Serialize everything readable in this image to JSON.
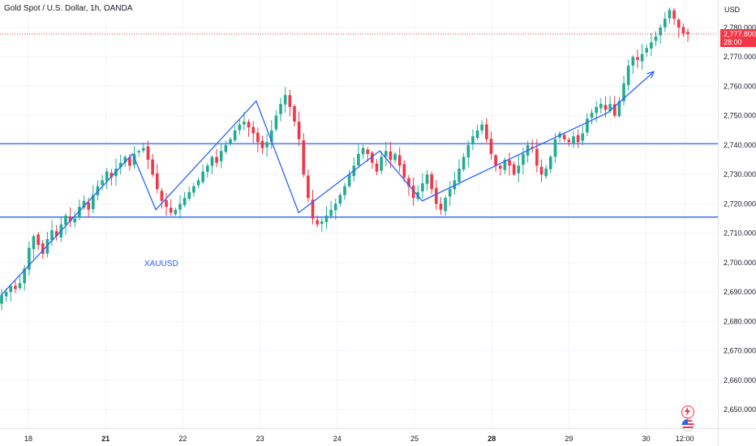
{
  "header": {
    "title": "Gold Spot / U.S. Dollar, 1h, OANDA",
    "currency": "USD"
  },
  "price_tag": {
    "price": "2,777.800",
    "countdown": "28:00"
  },
  "symbol_label": "XAUUSD",
  "colors": {
    "up": "#22ab94",
    "down": "#f23645",
    "drawing": "#2962ff",
    "grid": "#f0f3fa"
  },
  "icons": [
    "lightning-icon",
    "us-flag-icon"
  ],
  "chart_data": {
    "type": "candlestick",
    "symbol": "XAUUSD",
    "timeframe": "1h",
    "ylim": [
      2645,
      2790
    ],
    "yticks": [
      2650,
      2660,
      2670,
      2680,
      2690,
      2700,
      2710,
      2720,
      2730,
      2740,
      2750,
      2760,
      2770,
      2780
    ],
    "ytick_labels": [
      "2,650.000",
      "2,660.000",
      "2,670.000",
      "2,680.000",
      "2,690.000",
      "2,700.000",
      "2,710.000",
      "2,720.000",
      "2,730.000",
      "2,740.000",
      "2,750.000",
      "2,760.000",
      "2,770.000",
      "2,780.000"
    ],
    "x_ticks": [
      {
        "label": "18",
        "session": 0
      },
      {
        "label": "21",
        "session": 1
      },
      {
        "label": "22",
        "session": 2
      },
      {
        "label": "23",
        "session": 3
      },
      {
        "label": "24",
        "session": 4
      },
      {
        "label": "25",
        "session": 5
      },
      {
        "label": "28",
        "session": 6
      },
      {
        "label": "29",
        "session": 7
      },
      {
        "label": "30",
        "session": 8
      },
      {
        "label": "12:00",
        "session": 8.5
      }
    ],
    "last_price": 2777.8,
    "horizontal_levels": [
      2740.5,
      2715.5
    ],
    "path_drawing": [
      {
        "session": -0.35,
        "price": 2689
      },
      {
        "session": 1.35,
        "price": 2737
      },
      {
        "session": 1.65,
        "price": 2718
      },
      {
        "session": 2.95,
        "price": 2755
      },
      {
        "session": 3.5,
        "price": 2717
      },
      {
        "session": 4.55,
        "price": 2738
      },
      {
        "session": 5.1,
        "price": 2721
      },
      {
        "session": 6.45,
        "price": 2738
      },
      {
        "session": 7.5,
        "price": 2751
      },
      {
        "session": 8.1,
        "price": 2765
      }
    ],
    "closes": [
      2689,
      2690,
      2692,
      2691,
      2693,
      2698,
      2705,
      2709,
      2706,
      2703,
      2708,
      2711,
      2709,
      2713,
      2716,
      2714,
      2715,
      2719,
      2721,
      2718,
      2723,
      2726,
      2728,
      2731,
      2729,
      2732,
      2734,
      2736,
      2733,
      2737,
      2738,
      2739,
      2735,
      2730,
      2725,
      2721,
      2719,
      2717,
      2718,
      2720,
      2722,
      2724,
      2726,
      2728,
      2731,
      2733,
      2736,
      2734,
      2738,
      2740,
      2742,
      2745,
      2747,
      2748,
      2746,
      2744,
      2741,
      2739,
      2741,
      2745,
      2750,
      2754,
      2757,
      2753,
      2748,
      2742,
      2730,
      2722,
      2715,
      2713,
      2714,
      2716,
      2718,
      2720,
      2723,
      2726,
      2730,
      2733,
      2737,
      2739,
      2737,
      2734,
      2731,
      2736,
      2738,
      2735,
      2737,
      2733,
      2729,
      2726,
      2722,
      2724,
      2727,
      2730,
      2725,
      2720,
      2718,
      2722,
      2725,
      2728,
      2732,
      2736,
      2740,
      2743,
      2745,
      2747,
      2742,
      2737,
      2733,
      2732,
      2735,
      2733,
      2730,
      2733,
      2737,
      2740,
      2739,
      2733,
      2730,
      2732,
      2736,
      2742,
      2744,
      2742,
      2741,
      2743,
      2741,
      2744,
      2749,
      2751,
      2753,
      2754,
      2752,
      2754,
      2750,
      2755,
      2761,
      2767,
      2770,
      2769,
      2771,
      2773,
      2775,
      2777,
      2780,
      2783,
      2786,
      2783,
      2780,
      2778,
      2777.8
    ]
  }
}
